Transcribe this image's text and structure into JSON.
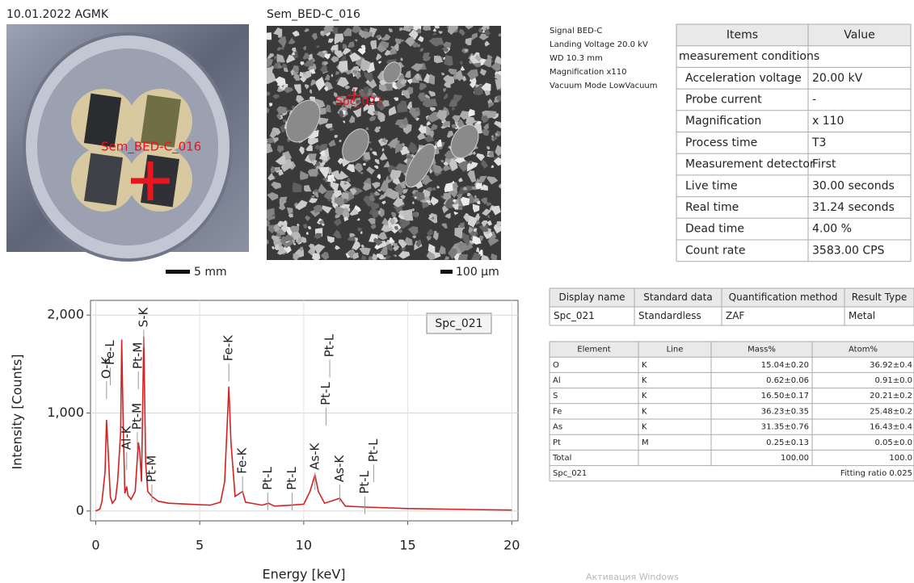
{
  "header": {
    "date_label": "10.01.2022 AGMK",
    "image_title": "Sem_BED-C_016"
  },
  "photo": {
    "overlay_label": "Sem_BED-C_016",
    "scale": "5 mm"
  },
  "sem_image": {
    "overlay_label": "Spc_021",
    "scale": "100 µm"
  },
  "signal_info": [
    "Signal BED-C",
    "Landing Voltage 20.0 kV",
    "WD 10.3 mm",
    "Magnification x110",
    "Vacuum Mode LowVacuum"
  ],
  "items_table": {
    "header": [
      "Items",
      "Value"
    ],
    "rows": [
      [
        "measurement conditions"
      ],
      [
        "Acceleration voltage",
        "20.00 kV"
      ],
      [
        "Probe current",
        "-"
      ],
      [
        "Magnification",
        "x 110"
      ],
      [
        "Process time",
        "T3"
      ],
      [
        "Measurement detector",
        "First"
      ],
      [
        "Live time",
        "30.00 seconds"
      ],
      [
        "Real time",
        "31.24 seconds"
      ],
      [
        "Dead time",
        "4.00 %"
      ],
      [
        "Count rate",
        "3583.00 CPS"
      ]
    ]
  },
  "quant_table": {
    "header": [
      "Display name",
      "Standard data",
      "Quantification method",
      "Result Type"
    ],
    "rows": [
      [
        "Spc_021",
        "Standardless",
        "ZAF",
        "Metal"
      ]
    ]
  },
  "element_table": {
    "header": [
      "Element",
      "Line",
      "Mass%",
      "Atom%"
    ],
    "rows": [
      {
        "element": "O",
        "line": "K",
        "mass": "15.04±0.20",
        "atom": "36.92±0.4"
      },
      {
        "element": "Al",
        "line": "K",
        "mass": "0.62±0.06",
        "atom": "0.91±0.0"
      },
      {
        "element": "S",
        "line": "K",
        "mass": "16.50±0.17",
        "atom": "20.21±0.2"
      },
      {
        "element": "Fe",
        "line": "K",
        "mass": "36.23±0.35",
        "atom": "25.48±0.2"
      },
      {
        "element": "As",
        "line": "K",
        "mass": "31.35±0.76",
        "atom": "16.43±0.4"
      },
      {
        "element": "Pt",
        "line": "M",
        "mass": "0.25±0.13",
        "atom": "0.05±0.0"
      },
      {
        "element": "Total",
        "mass": "100.00",
        "atom": "100.0"
      }
    ],
    "footer": {
      "name": "Spc_021",
      "fitting": "Fitting ratio 0.025"
    }
  },
  "chart_data": {
    "type": "line",
    "x_label": "Energy [keV]",
    "y_label": "Intensity [Counts]",
    "x": [
      0,
      0.2,
      0.3,
      0.45,
      0.52,
      0.6,
      0.7,
      0.8,
      0.95,
      1.05,
      1.2,
      1.25,
      1.32,
      1.4,
      1.49,
      1.55,
      1.7,
      1.9,
      2.05,
      2.12,
      2.2,
      2.31,
      2.4,
      2.5,
      2.7,
      3.0,
      3.5,
      4.5,
      5.5,
      6.0,
      6.2,
      6.4,
      6.5,
      6.7,
      7.06,
      7.2,
      8.0,
      8.3,
      8.6,
      9.4,
      10.0,
      10.3,
      10.54,
      10.7,
      11.0,
      11.73,
      12.0,
      13.0,
      15,
      18,
      20
    ],
    "series": [
      {
        "name": "Spc_021",
        "color": "#d42222",
        "values": [
          0,
          20,
          100,
          400,
          930,
          600,
          150,
          80,
          120,
          300,
          800,
          1750,
          900,
          180,
          250,
          160,
          120,
          200,
          700,
          600,
          300,
          1780,
          500,
          200,
          150,
          100,
          80,
          70,
          60,
          90,
          300,
          1270,
          700,
          150,
          200,
          90,
          60,
          80,
          50,
          60,
          70,
          200,
          370,
          200,
          80,
          130,
          50,
          40,
          25,
          15,
          10
        ]
      }
    ],
    "xlim": [
      -0.25,
      20.3
    ],
    "ylim": [
      -100,
      2150
    ],
    "xticks": [
      0,
      5,
      10,
      15,
      20
    ],
    "yticks": [
      0,
      {
        "value": 1000,
        "label": "1,000"
      },
      {
        "value": 2000,
        "label": "2,000"
      }
    ],
    "grid": true,
    "annotations": [
      {
        "label": "O-K",
        "x": 0.52,
        "y": 1325
      },
      {
        "label": "Fe-L",
        "x": 0.7,
        "y": 1465
      },
      {
        "label": "Al-K",
        "x": 1.49,
        "y": 600
      },
      {
        "label": "Pt-M",
        "x": 2.0,
        "y": 805
      },
      {
        "label": "Pt-M",
        "x": 2.05,
        "y": 1425
      },
      {
        "label": "S-K",
        "x": 2.31,
        "y": 1850
      },
      {
        "label": "Pt-M",
        "x": 2.7,
        "y": 270
      },
      {
        "label": "Fe-K",
        "x": 6.4,
        "y": 1505
      },
      {
        "label": "Fe-K",
        "x": 7.06,
        "y": 355
      },
      {
        "label": "Pt-L",
        "x": 8.27,
        "y": 190
      },
      {
        "label": "Pt-L",
        "x": 9.44,
        "y": 190
      },
      {
        "label": "As-K",
        "x": 10.54,
        "y": 395
      },
      {
        "label": "Pt-L",
        "x": 11.07,
        "y": 1055
      },
      {
        "label": "Pt-L",
        "x": 11.25,
        "y": 1545
      },
      {
        "label": "As-K",
        "x": 11.73,
        "y": 270
      },
      {
        "label": "Pt-L",
        "x": 12.94,
        "y": 150
      },
      {
        "label": "Pt-L",
        "x": 13.36,
        "y": 475
      }
    ]
  },
  "watermark": "Активация Windows"
}
